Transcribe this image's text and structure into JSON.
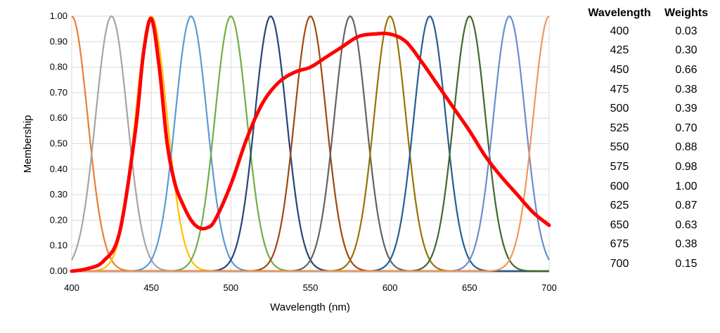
{
  "chart_data": {
    "type": "line",
    "xlabel": "Wavelength (nm)",
    "ylabel": "Membership",
    "xlim": [
      400,
      700
    ],
    "ylim": [
      0,
      1
    ],
    "x_ticks": [
      "400",
      "450",
      "500",
      "550",
      "600",
      "650",
      "700"
    ],
    "y_ticks": [
      "0.00",
      "0.10",
      "0.20",
      "0.30",
      "0.40",
      "0.50",
      "0.60",
      "0.70",
      "0.80",
      "0.90",
      "1.00"
    ],
    "grid": "both",
    "membership_functions": {
      "shape": "gaussian",
      "centers": [
        400,
        425,
        450,
        475,
        500,
        525,
        550,
        575,
        600,
        625,
        650,
        675,
        700
      ],
      "colors": [
        "#ED7D31",
        "#A5A5A5",
        "#FFC000",
        "#5B9BD5",
        "#70AD47",
        "#264478",
        "#9E480E",
        "#636363",
        "#997300",
        "#255E91",
        "#43682B",
        "#698ED0",
        "#F1975A"
      ]
    },
    "aggregate_curve": {
      "color": "#FF0000",
      "x": [
        400,
        410,
        420,
        430,
        440,
        445,
        450,
        455,
        460,
        465,
        470,
        475,
        480,
        485,
        490,
        500,
        510,
        520,
        530,
        540,
        550,
        560,
        570,
        580,
        590,
        600,
        610,
        620,
        630,
        640,
        650,
        660,
        670,
        680,
        690,
        700
      ],
      "y": [
        0.0,
        0.01,
        0.04,
        0.15,
        0.55,
        0.85,
        0.99,
        0.8,
        0.5,
        0.34,
        0.26,
        0.2,
        0.17,
        0.17,
        0.2,
        0.34,
        0.52,
        0.66,
        0.74,
        0.78,
        0.8,
        0.84,
        0.88,
        0.92,
        0.93,
        0.93,
        0.9,
        0.82,
        0.73,
        0.64,
        0.55,
        0.45,
        0.37,
        0.3,
        0.23,
        0.18
      ]
    }
  },
  "table": {
    "headers": [
      "Wavelength",
      "Weights"
    ],
    "rows": [
      [
        "400",
        "0.03"
      ],
      [
        "425",
        "0.30"
      ],
      [
        "450",
        "0.66"
      ],
      [
        "475",
        "0.38"
      ],
      [
        "500",
        "0.39"
      ],
      [
        "525",
        "0.70"
      ],
      [
        "550",
        "0.88"
      ],
      [
        "575",
        "0.98"
      ],
      [
        "600",
        "1.00"
      ],
      [
        "625",
        "0.87"
      ],
      [
        "650",
        "0.63"
      ],
      [
        "675",
        "0.38"
      ],
      [
        "700",
        "0.15"
      ]
    ]
  }
}
